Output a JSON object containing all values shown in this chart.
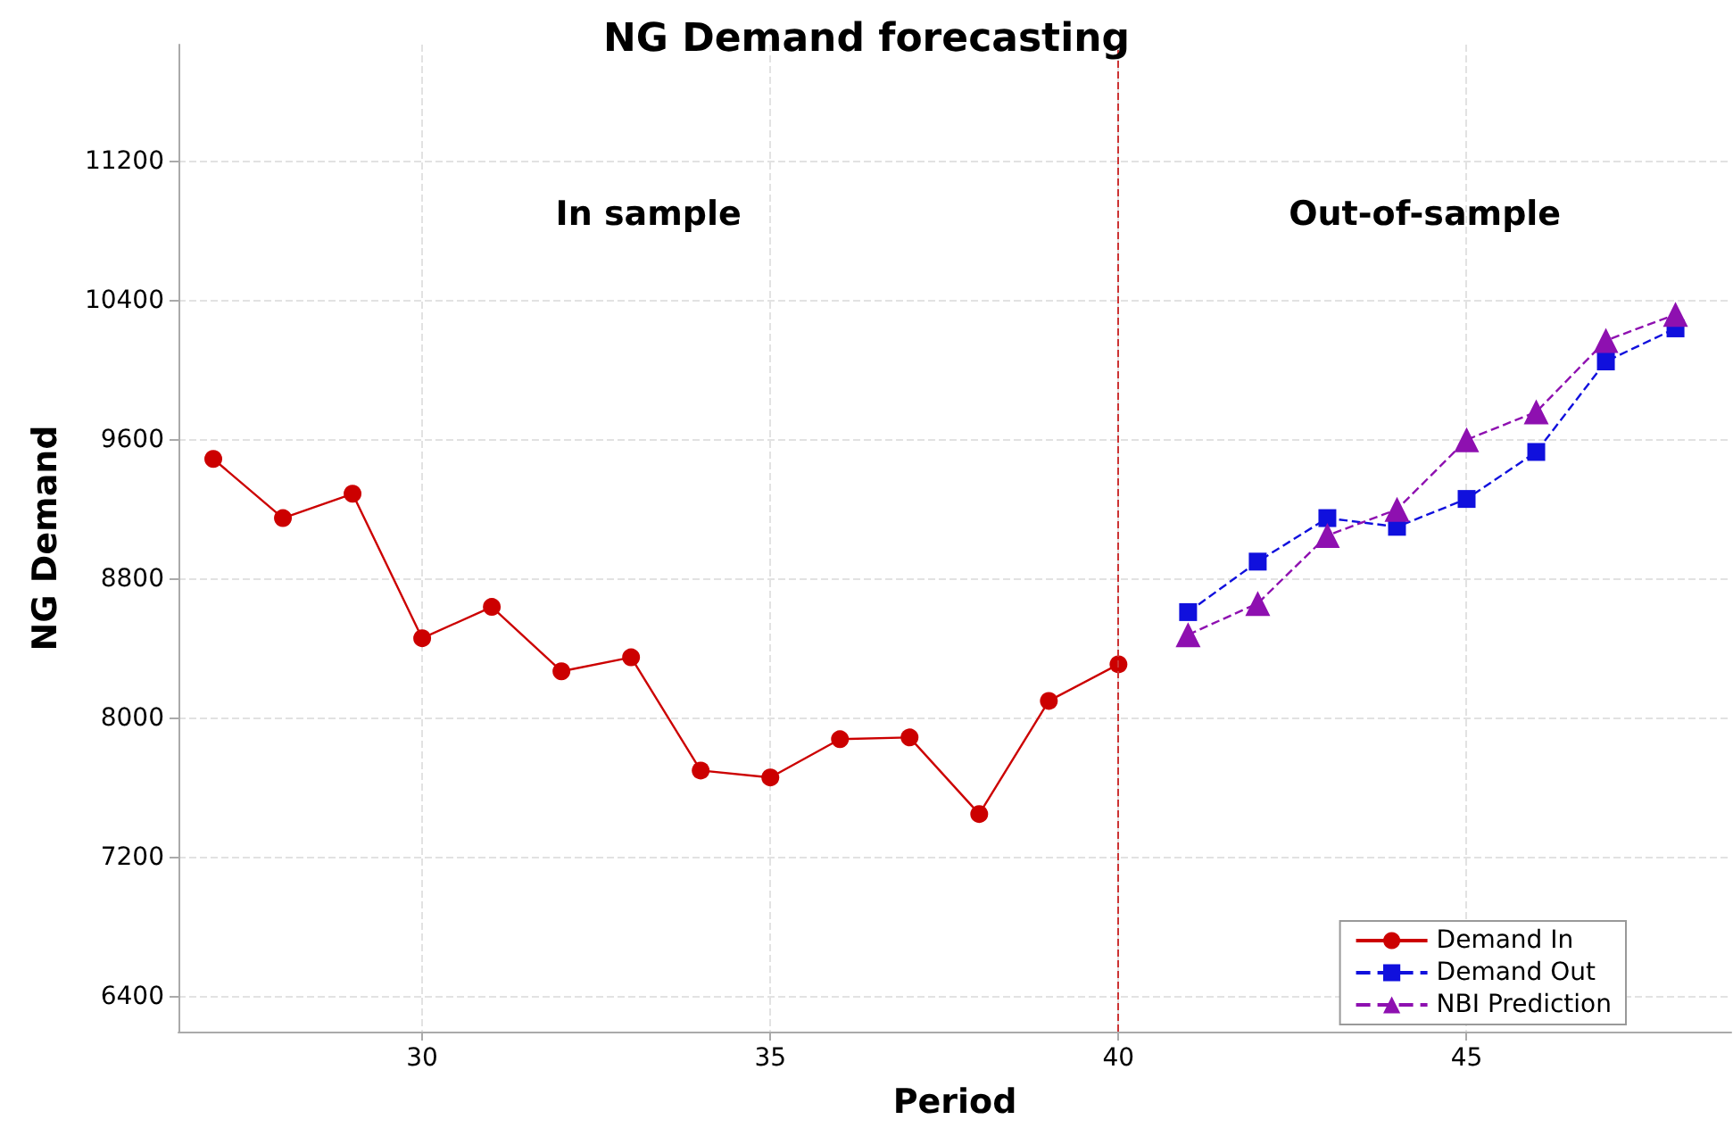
{
  "chart_data": {
    "type": "line",
    "title": "NG Demand forecasting",
    "xlabel": "Period",
    "ylabel": "NG Demand",
    "xlim": [
      26.5,
      48.8
    ],
    "xticks": [
      30,
      35,
      40,
      45
    ],
    "ylim": [
      6200,
      11870
    ],
    "yticks": [
      6400,
      7200,
      8000,
      8800,
      9600,
      10400,
      11200
    ],
    "grid": true,
    "legend": "bottom right",
    "ref_lines": [
      {
        "axis": "x",
        "value": 40,
        "color": "#cc3333",
        "line_style": "dashed"
      }
    ],
    "annotations": [
      "In sample",
      "Out-of-sample"
    ],
    "series": [
      {
        "name": "Demand In",
        "color": "#cc0000",
        "marker": "circle",
        "line_style": "solid",
        "x": [
          27,
          28,
          29,
          30,
          31,
          32,
          33,
          34,
          35,
          36,
          37,
          38,
          39,
          40
        ],
        "values": [
          9490,
          9150,
          9290,
          8460,
          8640,
          8270,
          8350,
          7700,
          7660,
          7880,
          7890,
          7450,
          8100,
          8310
        ]
      },
      {
        "name": "Demand Out",
        "color": "#1010dd",
        "marker": "square",
        "line_style": "dashed",
        "x": [
          41,
          42,
          43,
          44,
          45,
          46,
          47,
          48
        ],
        "values": [
          8610,
          8900,
          9150,
          9100,
          9260,
          9530,
          10050,
          10240
        ]
      },
      {
        "name": "NBI Prediction",
        "color": "#8e10b0",
        "marker": "triangle",
        "line_style": "dashed",
        "x": [
          41,
          42,
          43,
          44,
          45,
          46,
          47,
          48
        ],
        "values": [
          8480,
          8660,
          9050,
          9200,
          9600,
          9760,
          10170,
          10320
        ]
      }
    ]
  }
}
